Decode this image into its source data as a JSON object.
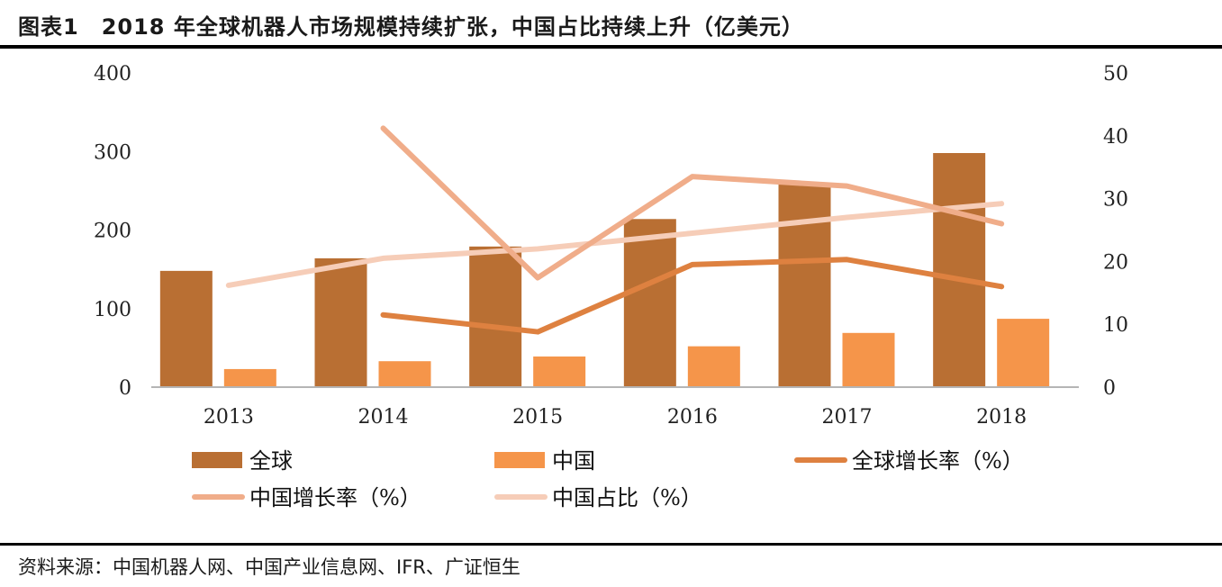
{
  "figure": {
    "title": "图表1　2018 年全球机器人市场规模持续扩张，中国占比持续上升（亿美元）",
    "source": "资料来源：中国机器人网、中国产业信息网、IFR、广证恒生"
  },
  "chart_data": {
    "type": "bar",
    "categories": [
      "2013",
      "2014",
      "2015",
      "2016",
      "2017",
      "2018"
    ],
    "y_left": {
      "min": 0,
      "max": 400,
      "ticks": [
        "0",
        "100",
        "200",
        "300",
        "400"
      ]
    },
    "y_right": {
      "min": 0,
      "max": 50,
      "ticks": [
        "0",
        "10",
        "20",
        "30",
        "40",
        "50"
      ]
    },
    "bar_series": [
      {
        "name": "全球",
        "color": "#b96f33",
        "values": [
          148,
          164,
          179,
          214,
          258,
          298
        ]
      },
      {
        "name": "中国",
        "color": "#f5954a",
        "values": [
          23,
          33,
          39,
          52,
          69,
          87
        ]
      }
    ],
    "line_series": [
      {
        "name": "全球增长率（%）",
        "color": "#de8140",
        "values": [
          null,
          11.5,
          8.8,
          19.5,
          20.3,
          16.0
        ]
      },
      {
        "name": "中国增长率（%）",
        "color": "#f0ad8a",
        "values": [
          null,
          41.2,
          17.4,
          33.5,
          32.0,
          26.0
        ]
      },
      {
        "name": "中国占比（%）",
        "color": "#f6cdb8",
        "values": [
          16.2,
          20.5,
          22.0,
          24.5,
          27.0,
          29.2
        ]
      }
    ],
    "grid": false,
    "legend_position": "bottom"
  }
}
